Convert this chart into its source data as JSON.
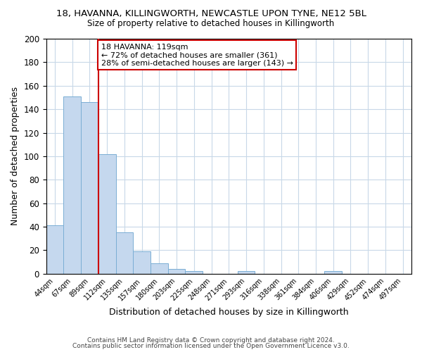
{
  "title": "18, HAVANNA, KILLINGWORTH, NEWCASTLE UPON TYNE, NE12 5BL",
  "subtitle": "Size of property relative to detached houses in Killingworth",
  "xlabel": "Distribution of detached houses by size in Killingworth",
  "ylabel": "Number of detached properties",
  "bar_values": [
    41,
    151,
    146,
    102,
    35,
    19,
    9,
    4,
    2,
    0,
    0,
    2,
    0,
    0,
    0,
    0,
    2
  ],
  "bin_labels": [
    "44sqm",
    "67sqm",
    "89sqm",
    "112sqm",
    "135sqm",
    "157sqm",
    "180sqm",
    "203sqm",
    "225sqm",
    "248sqm",
    "271sqm",
    "293sqm",
    "316sqm",
    "338sqm",
    "361sqm",
    "384sqm",
    "406sqm",
    "429sqm",
    "452sqm",
    "474sqm",
    "497sqm"
  ],
  "bar_color": "#c5d8ee",
  "bar_edge_color": "#7aaed4",
  "highlight_line_color": "#cc0000",
  "annotation_text": "18 HAVANNA: 119sqm\n← 72% of detached houses are smaller (361)\n28% of semi-detached houses are larger (143) →",
  "annotation_box_color": "#ffffff",
  "annotation_box_edge_color": "#cc0000",
  "ylim": [
    0,
    200
  ],
  "yticks": [
    0,
    20,
    40,
    60,
    80,
    100,
    120,
    140,
    160,
    180,
    200
  ],
  "footer_line1": "Contains HM Land Registry data © Crown copyright and database right 2024.",
  "footer_line2": "Contains public sector information licensed under the Open Government Licence v3.0.",
  "background_color": "#ffffff",
  "grid_color": "#c8d8e8",
  "n_total_bins": 21,
  "n_bars": 17,
  "red_line_at_bar_index": 3
}
